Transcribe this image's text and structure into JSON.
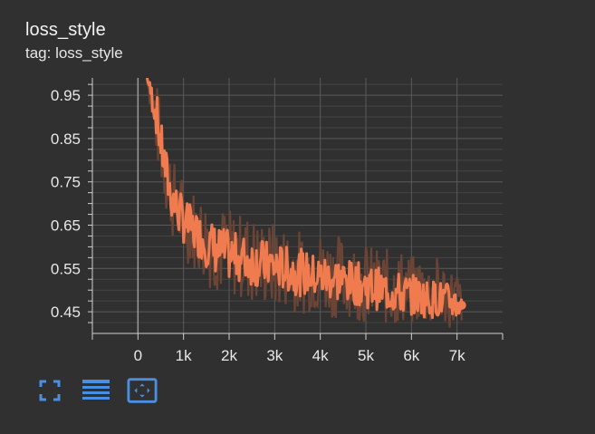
{
  "card": {
    "title": "loss_style",
    "tag": "tag: loss_style"
  },
  "toolbar": {
    "icons": [
      "fullscreen-icon",
      "data-table-icon",
      "fit-domain-icon"
    ]
  },
  "colors": {
    "background": "#303030",
    "grid": "#5a5a5a",
    "axis": "#d0d0d0",
    "series": "#f07b4e",
    "series_raw": "#6b4436",
    "toolbar_icon": "#4a90e2"
  },
  "chart_data": {
    "type": "line",
    "title": "loss_style",
    "xlabel": "",
    "ylabel": "",
    "xlim": [
      -1000,
      8000
    ],
    "ylim": [
      0.4,
      0.99
    ],
    "x_ticks": [
      0,
      1000,
      2000,
      3000,
      4000,
      5000,
      6000,
      7000
    ],
    "x_tick_labels": [
      "0",
      "1k",
      "2k",
      "3k",
      "4k",
      "5k",
      "6k",
      "7k"
    ],
    "y_ticks": [
      0.45,
      0.55,
      0.65,
      0.75,
      0.85,
      0.95
    ],
    "y_tick_labels": [
      "0.45",
      "0.55",
      "0.65",
      "0.75",
      "0.85",
      "0.95"
    ],
    "grid": true,
    "series": [
      {
        "x": [
          200,
          300,
          400,
          500,
          600,
          700,
          800,
          900,
          1000,
          1200,
          1400,
          1600,
          1800,
          2000,
          2200,
          2400,
          2600,
          2800,
          3000,
          3200,
          3400,
          3600,
          3800,
          4000,
          4200,
          4400,
          4600,
          4800,
          5000,
          5200,
          5400,
          5600,
          5800,
          6000,
          6200,
          6400,
          6600,
          6800,
          7000,
          7100
        ],
        "y": [
          0.99,
          0.95,
          0.91,
          0.84,
          0.78,
          0.73,
          0.7,
          0.68,
          0.66,
          0.64,
          0.62,
          0.6,
          0.59,
          0.58,
          0.575,
          0.57,
          0.565,
          0.56,
          0.555,
          0.55,
          0.545,
          0.54,
          0.535,
          0.53,
          0.53,
          0.525,
          0.52,
          0.515,
          0.51,
          0.505,
          0.5,
          0.495,
          0.49,
          0.49,
          0.485,
          0.48,
          0.48,
          0.475,
          0.47,
          0.465
        ],
        "raw_min": [
          0.99,
          0.88,
          0.8,
          0.74,
          0.68,
          0.64,
          0.6,
          0.58,
          0.57,
          0.55,
          0.53,
          0.5,
          0.49,
          0.48,
          0.48,
          0.47,
          0.46,
          0.46,
          0.45,
          0.46,
          0.45,
          0.44,
          0.45,
          0.44,
          0.44,
          0.43,
          0.44,
          0.43,
          0.42,
          0.42,
          0.42,
          0.41,
          0.42,
          0.41,
          0.42,
          0.41,
          0.42,
          0.41,
          0.41,
          0.42
        ],
        "raw_max": [
          0.99,
          0.99,
          0.99,
          0.93,
          0.88,
          0.84,
          0.8,
          0.78,
          0.76,
          0.74,
          0.72,
          0.72,
          0.7,
          0.69,
          0.68,
          0.68,
          0.67,
          0.66,
          0.66,
          0.65,
          0.65,
          0.64,
          0.63,
          0.64,
          0.63,
          0.63,
          0.62,
          0.61,
          0.61,
          0.6,
          0.6,
          0.59,
          0.6,
          0.58,
          0.59,
          0.57,
          0.58,
          0.56,
          0.55,
          0.52
        ]
      }
    ]
  }
}
